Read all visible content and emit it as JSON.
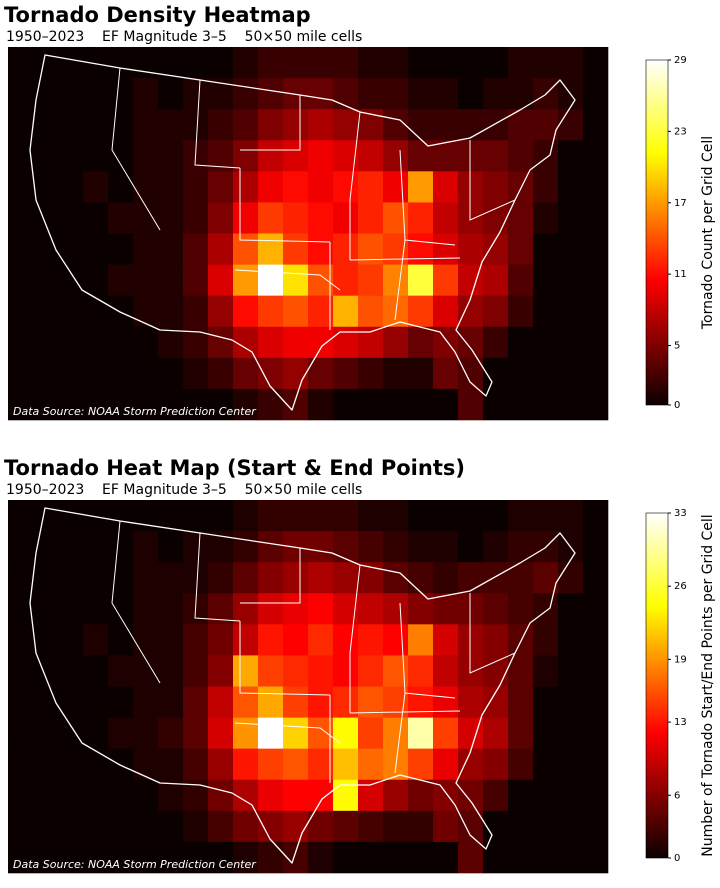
{
  "chart_data": [
    {
      "type": "heatmap",
      "title": "Tornado Density Heatmap",
      "subtitle": "1950–2023    EF Magnitude 3–5    50×50 mile cells",
      "source": "Data Source: NOAA Storm Prediction Center",
      "colorbar_label": "Tornado Count per Grid Cell",
      "colormap": "hot",
      "zlim": [
        0,
        29
      ],
      "zticks": [
        0,
        5,
        11,
        17,
        23,
        29
      ],
      "z": [
        [
          0,
          0,
          0,
          0,
          0,
          0,
          0,
          0,
          0,
          1,
          2,
          2,
          2,
          2,
          1,
          1,
          0,
          0,
          0,
          0,
          1,
          1,
          1,
          0
        ],
        [
          0,
          0,
          0,
          0,
          0,
          1,
          0,
          1,
          1,
          2,
          3,
          4,
          4,
          3,
          2,
          2,
          1,
          1,
          0,
          1,
          1,
          2,
          1,
          0
        ],
        [
          0,
          0,
          0,
          0,
          0,
          1,
          1,
          1,
          2,
          3,
          5,
          6,
          7,
          6,
          5,
          3,
          2,
          2,
          2,
          2,
          3,
          3,
          2,
          0
        ],
        [
          0,
          0,
          0,
          0,
          0,
          1,
          1,
          2,
          3,
          5,
          8,
          9,
          10,
          9,
          8,
          6,
          4,
          4,
          4,
          4,
          3,
          2,
          0,
          0
        ],
        [
          0,
          0,
          0,
          1,
          0,
          1,
          1,
          2,
          4,
          7,
          10,
          11,
          10,
          11,
          12,
          10,
          17,
          9,
          6,
          5,
          4,
          2,
          0,
          0
        ],
        [
          0,
          0,
          0,
          0,
          1,
          1,
          1,
          2,
          5,
          10,
          13,
          12,
          11,
          10,
          12,
          14,
          12,
          8,
          6,
          5,
          4,
          1,
          0,
          0
        ],
        [
          0,
          0,
          0,
          0,
          0,
          1,
          1,
          3,
          7,
          14,
          18,
          13,
          11,
          12,
          14,
          13,
          11,
          9,
          7,
          6,
          4,
          0,
          0,
          0
        ],
        [
          0,
          0,
          0,
          0,
          1,
          1,
          1,
          3,
          9,
          17,
          29,
          20,
          14,
          12,
          13,
          16,
          23,
          13,
          8,
          7,
          3,
          0,
          0,
          0
        ],
        [
          0,
          0,
          0,
          0,
          0,
          1,
          1,
          2,
          6,
          11,
          13,
          14,
          12,
          18,
          14,
          15,
          13,
          9,
          6,
          5,
          2,
          0,
          0,
          0
        ],
        [
          0,
          0,
          0,
          0,
          0,
          0,
          1,
          2,
          4,
          7,
          9,
          10,
          10,
          9,
          8,
          6,
          4,
          5,
          4,
          2,
          0,
          0,
          0,
          0
        ],
        [
          0,
          0,
          0,
          0,
          0,
          0,
          0,
          1,
          2,
          4,
          5,
          6,
          4,
          3,
          2,
          1,
          1,
          4,
          3,
          0,
          0,
          0,
          0,
          0
        ],
        [
          0,
          0,
          0,
          0,
          0,
          0,
          0,
          0,
          0,
          1,
          2,
          3,
          1,
          0,
          0,
          0,
          0,
          0,
          3,
          0,
          0,
          0,
          0,
          0
        ]
      ]
    },
    {
      "type": "heatmap",
      "title": "Tornado Heat Map (Start & End Points)",
      "subtitle": "1950–2023    EF Magnitude 3–5    50×50 mile cells",
      "source": "Data Source: NOAA Storm Prediction Center",
      "colorbar_label": "Number of Tornado Start/End Points per Grid Cell",
      "colormap": "hot",
      "zlim": [
        0,
        33
      ],
      "zticks": [
        0,
        6,
        13,
        19,
        26,
        33
      ],
      "z": [
        [
          0,
          0,
          0,
          0,
          0,
          0,
          0,
          0,
          0,
          1,
          2,
          2,
          2,
          2,
          1,
          1,
          0,
          0,
          0,
          0,
          1,
          1,
          1,
          0
        ],
        [
          0,
          0,
          0,
          0,
          0,
          1,
          0,
          1,
          1,
          2,
          4,
          5,
          5,
          4,
          3,
          2,
          1,
          1,
          0,
          1,
          2,
          2,
          1,
          0
        ],
        [
          0,
          0,
          0,
          0,
          0,
          1,
          1,
          1,
          2,
          4,
          6,
          7,
          8,
          7,
          6,
          4,
          3,
          2,
          3,
          3,
          3,
          4,
          2,
          0
        ],
        [
          0,
          0,
          0,
          0,
          0,
          1,
          1,
          2,
          4,
          7,
          10,
          11,
          12,
          10,
          9,
          8,
          6,
          5,
          5,
          4,
          3,
          2,
          0,
          0
        ],
        [
          0,
          0,
          0,
          1,
          0,
          1,
          1,
          3,
          5,
          9,
          13,
          12,
          14,
          12,
          13,
          12,
          18,
          10,
          7,
          6,
          4,
          2,
          0,
          0
        ],
        [
          0,
          0,
          0,
          0,
          1,
          1,
          1,
          3,
          6,
          20,
          15,
          14,
          13,
          12,
          14,
          16,
          14,
          9,
          7,
          6,
          4,
          1,
          0,
          0
        ],
        [
          0,
          0,
          0,
          0,
          0,
          1,
          1,
          4,
          9,
          16,
          20,
          15,
          13,
          14,
          16,
          15,
          13,
          11,
          8,
          7,
          4,
          0,
          0,
          0
        ],
        [
          0,
          0,
          0,
          0,
          1,
          1,
          2,
          4,
          10,
          19,
          33,
          22,
          16,
          24,
          15,
          18,
          30,
          15,
          10,
          8,
          4,
          0,
          0,
          0
        ],
        [
          0,
          0,
          0,
          0,
          0,
          1,
          1,
          3,
          7,
          13,
          15,
          16,
          14,
          21,
          17,
          18,
          15,
          11,
          7,
          6,
          3,
          0,
          0,
          0
        ],
        [
          0,
          0,
          0,
          0,
          0,
          0,
          1,
          2,
          5,
          8,
          11,
          12,
          12,
          24,
          10,
          7,
          5,
          6,
          5,
          3,
          0,
          0,
          0,
          0
        ],
        [
          0,
          0,
          0,
          0,
          0,
          0,
          0,
          1,
          3,
          5,
          6,
          7,
          5,
          4,
          3,
          2,
          2,
          5,
          4,
          0,
          0,
          0,
          0,
          0
        ],
        [
          0,
          0,
          0,
          0,
          0,
          0,
          0,
          0,
          0,
          1,
          2,
          3,
          1,
          0,
          0,
          0,
          0,
          0,
          4,
          0,
          0,
          0,
          0,
          0
        ]
      ]
    }
  ]
}
